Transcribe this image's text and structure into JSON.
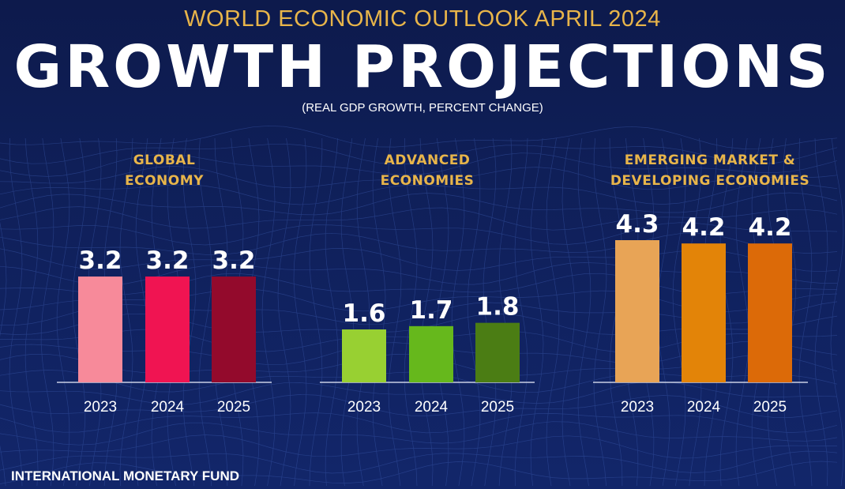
{
  "header": {
    "supertitle": "WORLD ECONOMIC OUTLOOK APRIL 2024",
    "title": "GROWTH PROJECTIONS",
    "subtitle": "(REAL GDP GROWTH, PERCENT CHANGE)"
  },
  "footer": {
    "organization": "INTERNATIONAL MONETARY FUND"
  },
  "colors": {
    "background": "#0f1d52",
    "title": "#ffffff",
    "supertitle": "#e8b54a",
    "panel_title": "#e8b54a",
    "axis": "#c9cfe3"
  },
  "chart_data": [
    {
      "type": "bar",
      "title_lines": [
        "GLOBAL",
        "ECONOMY"
      ],
      "categories": [
        "2023",
        "2024",
        "2025"
      ],
      "values": [
        3.2,
        3.2,
        3.2
      ],
      "labels": [
        "3.2",
        "3.2",
        "3.2"
      ],
      "bar_colors": [
        "#f78a9a",
        "#f01452",
        "#930a2c"
      ],
      "ylim": [
        0,
        4.3
      ]
    },
    {
      "type": "bar",
      "title_lines": [
        "ADVANCED",
        "ECONOMIES"
      ],
      "categories": [
        "2023",
        "2024",
        "2025"
      ],
      "values": [
        1.6,
        1.7,
        1.8
      ],
      "labels": [
        "1.6",
        "1.7",
        "1.8"
      ],
      "bar_colors": [
        "#98d032",
        "#66b81c",
        "#4b7d14"
      ],
      "ylim": [
        0,
        4.3
      ]
    },
    {
      "type": "bar",
      "title_lines": [
        "EMERGING MARKET &",
        "DEVELOPING ECONOMIES"
      ],
      "categories": [
        "2023",
        "2024",
        "2025"
      ],
      "values": [
        4.3,
        4.2,
        4.2
      ],
      "labels": [
        "4.3",
        "4.2",
        "4.2"
      ],
      "bar_colors": [
        "#e8a456",
        "#e38408",
        "#dc6a08"
      ],
      "ylim": [
        0,
        4.3
      ]
    }
  ]
}
